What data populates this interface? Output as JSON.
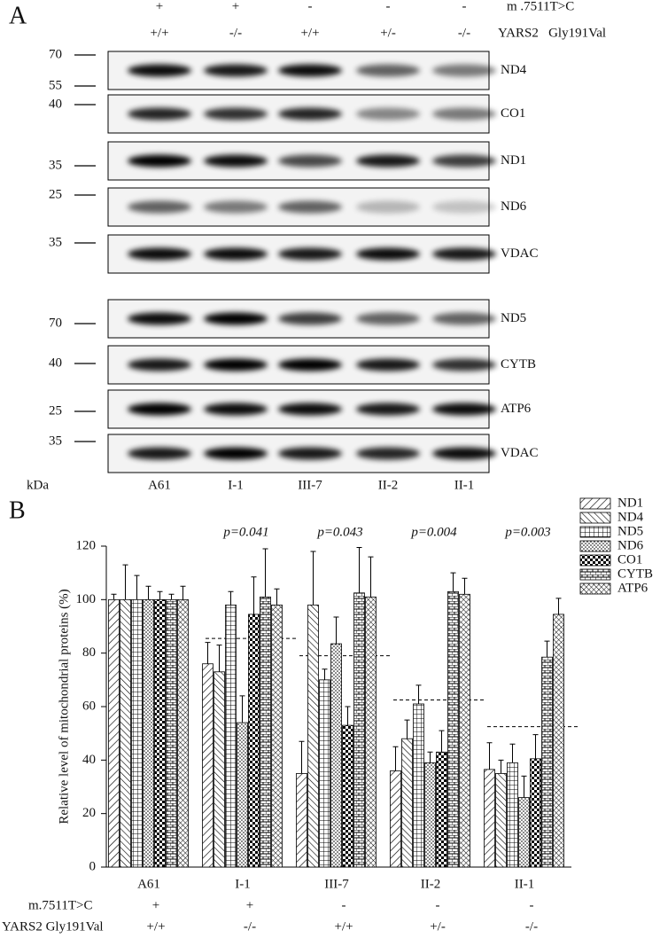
{
  "panel_a": {
    "label": "A",
    "rows": [
      {
        "name": "m .7511T>C",
        "values": [
          "+",
          "+",
          "-",
          "-",
          "-"
        ]
      },
      {
        "name": "YARS2   Gly191Val",
        "values": [
          "+/+",
          "-/-",
          "+/+",
          "+/-",
          "-/-"
        ]
      }
    ],
    "blots": [
      {
        "name": "ND4",
        "markers": [
          70,
          55
        ]
      },
      {
        "name": "CO1",
        "markers": [
          40
        ]
      },
      {
        "name": "ND1",
        "markers": [
          35
        ]
      },
      {
        "name": "ND6",
        "markers": [
          25
        ]
      },
      {
        "name": "VDAC",
        "markers": [
          35
        ]
      },
      {
        "name": "ND5",
        "markers": [
          70
        ]
      },
      {
        "name": "CYTB",
        "markers": [
          40
        ]
      },
      {
        "name": "ATP6",
        "markers": [
          25
        ]
      },
      {
        "name": "VDAC",
        "markers": [
          35
        ]
      }
    ],
    "unit": "kDa",
    "lanes": [
      "A61",
      "I-1",
      "III-7",
      "II-2",
      "II-1"
    ]
  },
  "chart_data": {
    "type": "bar",
    "panel_label": "B",
    "y_label": "Relative level of mitochondrial proteins (%)",
    "categories": [
      "A61",
      "I-1",
      "III-7",
      "II-2",
      "II-1"
    ],
    "p_values": [
      null,
      "p=0.041",
      "p=0.043",
      "p=0.004",
      "p=0.003"
    ],
    "group_means": [
      null,
      85.5,
      79,
      62.5,
      52.5
    ],
    "series": [
      {
        "name": "ND1",
        "pattern": "diag",
        "color": "#000000",
        "values": [
          100,
          76,
          35,
          36,
          36.5
        ],
        "errors": [
          2,
          8,
          12,
          9,
          10
        ]
      },
      {
        "name": "ND4",
        "pattern": "antidiag",
        "color": "#000000",
        "values": [
          100,
          73,
          98,
          48,
          35
        ],
        "errors": [
          13,
          10,
          20,
          7,
          5
        ]
      },
      {
        "name": "ND5",
        "pattern": "grid",
        "color": "#000000",
        "values": [
          100,
          98,
          70,
          61,
          39
        ],
        "errors": [
          9,
          5,
          4,
          7,
          7
        ]
      },
      {
        "name": "ND6",
        "pattern": "dots",
        "color": "#000000",
        "values": [
          100,
          54,
          83.5,
          39,
          26
        ],
        "errors": [
          5,
          10,
          10,
          4,
          8
        ]
      },
      {
        "name": "CO1",
        "pattern": "checker",
        "color": "#000000",
        "values": [
          100,
          94.5,
          53,
          43,
          40.5
        ],
        "errors": [
          3,
          14,
          7,
          8,
          9
        ]
      },
      {
        "name": "CYTB",
        "pattern": "brick",
        "color": "#000000",
        "values": [
          100,
          101,
          102.5,
          103,
          78.5
        ],
        "errors": [
          2,
          18,
          17,
          7,
          6
        ]
      },
      {
        "name": "ATP6",
        "pattern": "dense",
        "color": "#000000",
        "values": [
          100,
          98,
          101,
          102,
          94.5
        ],
        "errors": [
          5,
          6,
          15,
          6,
          6
        ]
      }
    ],
    "ylim": [
      0,
      120
    ],
    "yticks": [
      0,
      20,
      40,
      60,
      80,
      100,
      120
    ],
    "genotype_rows": [
      {
        "name": "m.7511T>C",
        "values": [
          "+",
          "+",
          "-",
          "-",
          "-"
        ]
      },
      {
        "name": "YARS2 Gly191Val",
        "values": [
          "+/+",
          "-/-",
          "+/+",
          "+/-",
          "-/-"
        ]
      }
    ]
  }
}
